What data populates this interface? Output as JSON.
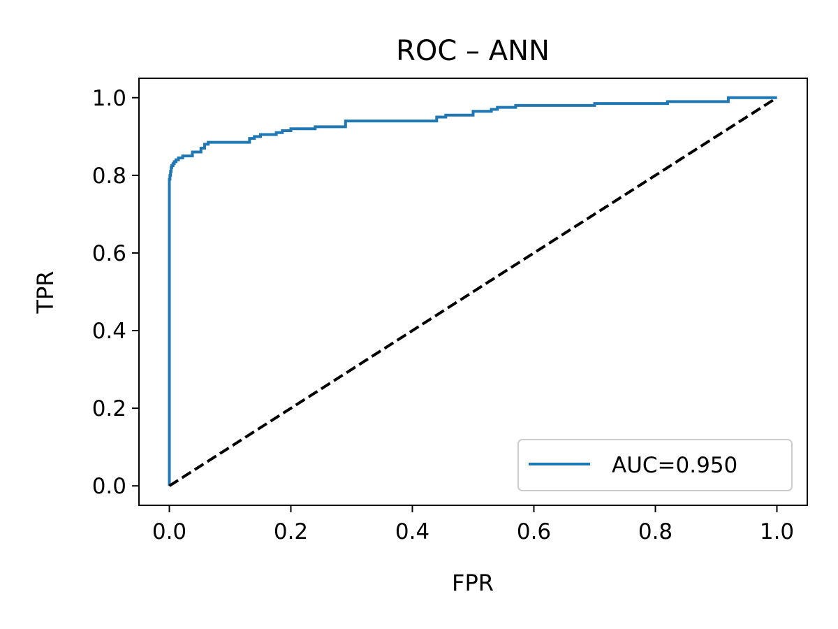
{
  "chart_data": {
    "type": "line",
    "title": "ROC – ANN",
    "xlabel": "FPR",
    "ylabel": "TPR",
    "xlim": [
      -0.05,
      1.05
    ],
    "ylim": [
      -0.05,
      1.05
    ],
    "xticks": [
      0.0,
      0.2,
      0.4,
      0.6,
      0.8,
      1.0
    ],
    "yticks": [
      0.0,
      0.2,
      0.4,
      0.6,
      0.8,
      1.0
    ],
    "xtick_labels": [
      "0.0",
      "0.2",
      "0.4",
      "0.6",
      "0.8",
      "1.0"
    ],
    "ytick_labels": [
      "0.0",
      "0.2",
      "0.4",
      "0.6",
      "0.8",
      "1.0"
    ],
    "grid": false,
    "legend_position": "lower right",
    "series": [
      {
        "name": "AUC=0.950",
        "color": "#1f77b4",
        "style": "step",
        "x": [
          0.0,
          0.0,
          0.0,
          0.0,
          0.0,
          0.0,
          0.001,
          0.001,
          0.002,
          0.002,
          0.003,
          0.003,
          0.004,
          0.004,
          0.006,
          0.006,
          0.008,
          0.008,
          0.011,
          0.011,
          0.015,
          0.015,
          0.022,
          0.022,
          0.038,
          0.038,
          0.052,
          0.052,
          0.058,
          0.058,
          0.064,
          0.064,
          0.132,
          0.132,
          0.14,
          0.14,
          0.15,
          0.15,
          0.176,
          0.176,
          0.186,
          0.186,
          0.2,
          0.2,
          0.24,
          0.24,
          0.29,
          0.29,
          0.44,
          0.44,
          0.455,
          0.455,
          0.5,
          0.5,
          0.53,
          0.53,
          0.54,
          0.54,
          0.57,
          0.57,
          0.7,
          0.7,
          0.82,
          0.82,
          0.92,
          0.92,
          1.0
        ],
        "y": [
          0.0,
          0.5,
          0.74,
          0.76,
          0.78,
          0.79,
          0.79,
          0.8,
          0.8,
          0.81,
          0.81,
          0.82,
          0.82,
          0.825,
          0.825,
          0.83,
          0.83,
          0.835,
          0.835,
          0.84,
          0.84,
          0.845,
          0.845,
          0.85,
          0.85,
          0.86,
          0.86,
          0.87,
          0.87,
          0.88,
          0.88,
          0.885,
          0.885,
          0.895,
          0.895,
          0.9,
          0.9,
          0.905,
          0.905,
          0.91,
          0.91,
          0.915,
          0.915,
          0.92,
          0.92,
          0.925,
          0.925,
          0.94,
          0.94,
          0.95,
          0.95,
          0.955,
          0.955,
          0.965,
          0.965,
          0.97,
          0.97,
          0.975,
          0.975,
          0.98,
          0.98,
          0.985,
          0.985,
          0.99,
          0.99,
          1.0,
          1.0
        ]
      },
      {
        "name": "",
        "color": "#000000",
        "style": "dashed",
        "x": [
          0.0,
          1.0
        ],
        "y": [
          0.0,
          1.0
        ]
      }
    ]
  }
}
